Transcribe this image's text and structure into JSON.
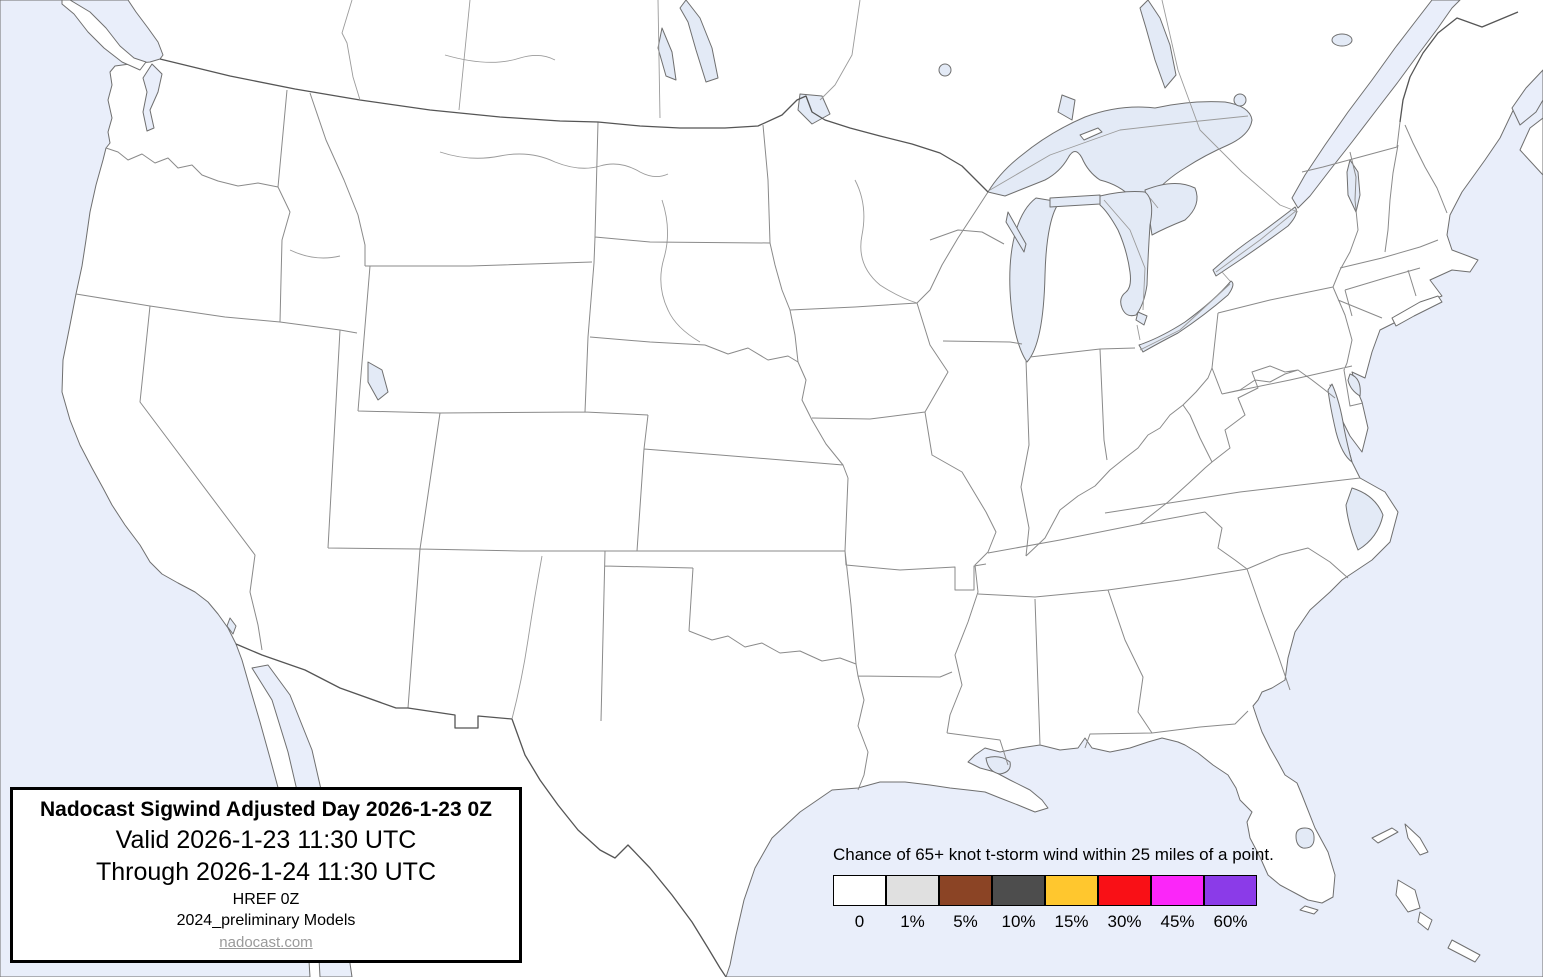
{
  "map": {
    "description": "CONUS forecast base map",
    "colors": {
      "land": "#ffffff",
      "water": "#e9eefa",
      "lake_water": "#e3eaf6",
      "state_border": "#8a8a8a",
      "coastline": "#6f6f6f",
      "national_border": "#555555",
      "river": "#9b9b9b"
    }
  },
  "info_box": {
    "title": "Nadocast Sigwind Adjusted Day 2026-1-23 0Z",
    "valid_line": "Valid 2026-1-23 11:30 UTC",
    "through_line": "Through 2026-1-24 11:30 UTC",
    "model_line": "HREF 0Z",
    "models_line": "2024_preliminary Models",
    "site_link": "nadocast.com"
  },
  "legend": {
    "label": "Chance of 65+ knot t-storm wind within 25 miles of a point.",
    "bins": [
      {
        "label": "0",
        "color": "#ffffff"
      },
      {
        "label": "1%",
        "color": "#e0e0e0"
      },
      {
        "label": "5%",
        "color": "#8b4425"
      },
      {
        "label": "10%",
        "color": "#4d4d4d"
      },
      {
        "label": "15%",
        "color": "#ffc72e"
      },
      {
        "label": "30%",
        "color": "#f91016"
      },
      {
        "label": "45%",
        "color": "#fb26f9"
      },
      {
        "label": "60%",
        "color": "#8b3be8"
      }
    ]
  }
}
